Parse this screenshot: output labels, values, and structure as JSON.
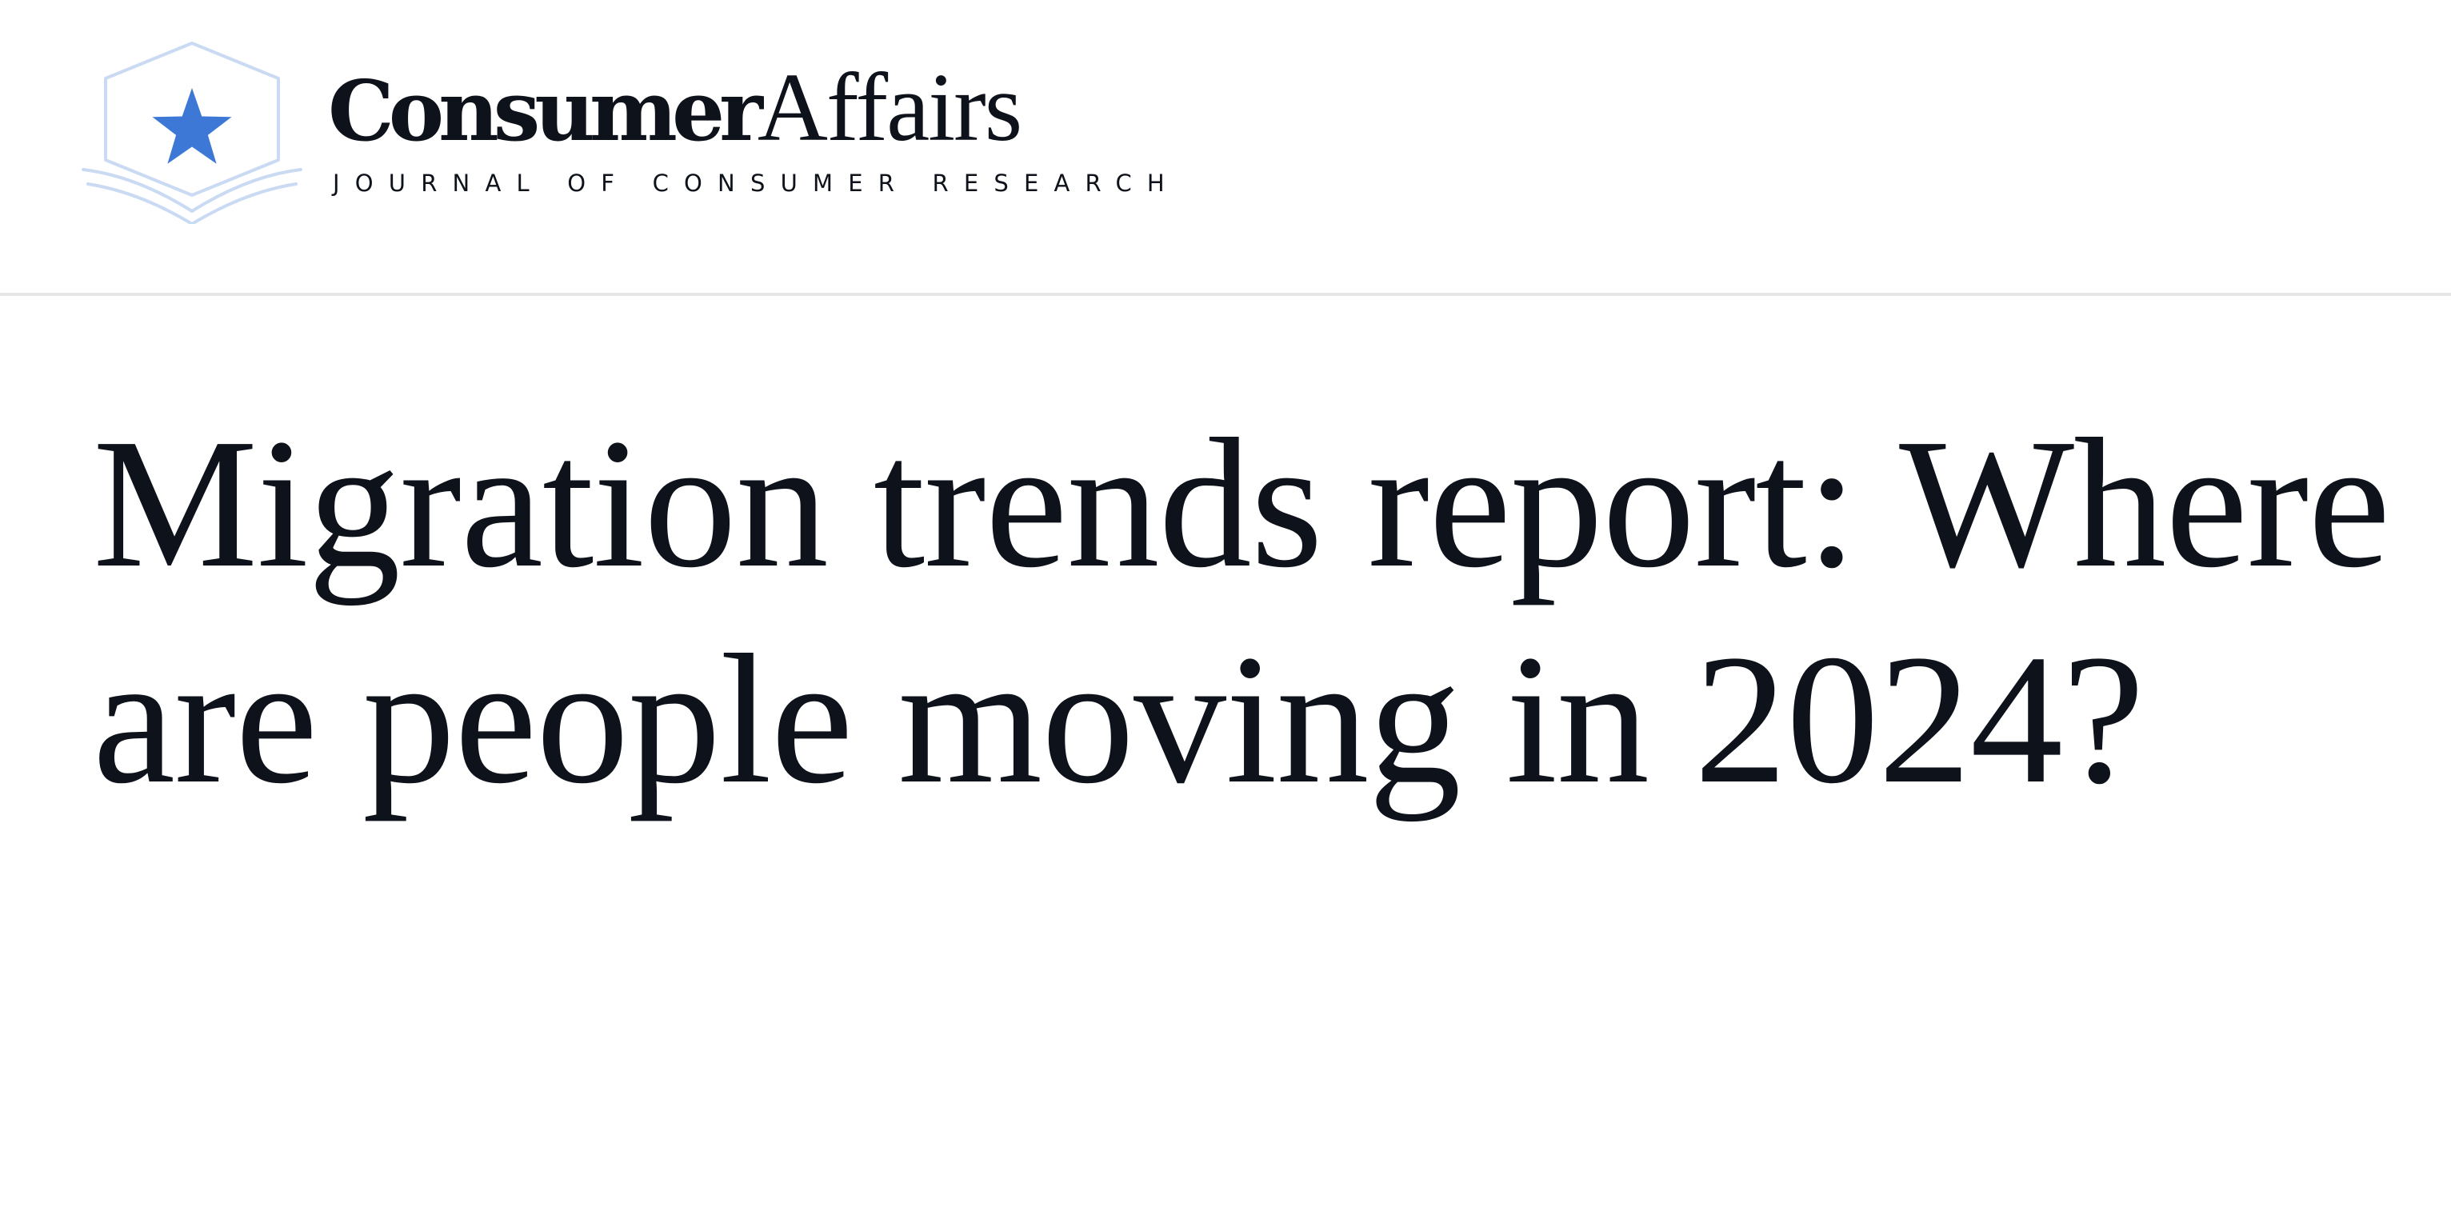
{
  "header": {
    "logo": {
      "brand_bold": "Consumer",
      "brand_light": "Affairs",
      "tagline": "JOURNAL OF CONSUMER RESEARCH",
      "badge_icon": "star-book-icon",
      "accent_color": "#3e78d6",
      "outline_color": "#c9daf2"
    }
  },
  "article": {
    "headline": "Migration trends report: Where are people moving in 2024?"
  }
}
